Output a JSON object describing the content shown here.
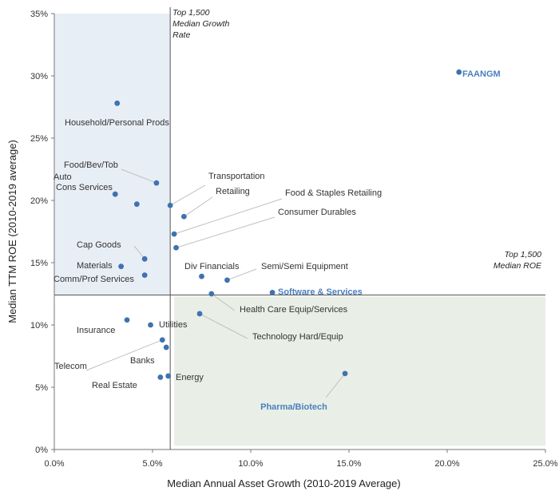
{
  "chart_data": {
    "type": "scatter",
    "xlabel": "Median Annual Asset Growth (2010-2019 Average)",
    "ylabel": "Median TTM ROE (2010-2019 average)",
    "xlim": [
      0,
      25
    ],
    "ylim": [
      0,
      35
    ],
    "x_ticks": [
      "0.0%",
      "5.0%",
      "10.0%",
      "15.0%",
      "20.0%",
      "25.0%"
    ],
    "y_ticks": [
      "0%",
      "5%",
      "10%",
      "15%",
      "20%",
      "25%",
      "30%",
      "35%"
    ],
    "grid": false,
    "reference_lines": {
      "vertical": {
        "x": 5.9,
        "label_lines": [
          "Top 1,500",
          "Median Growth",
          "Rate"
        ]
      },
      "horizontal": {
        "y": 12.4,
        "label_lines": [
          "Top 1,500",
          "Median ROE"
        ]
      }
    },
    "shaded_regions": [
      {
        "quadrant": "upper-left",
        "color": "#e8eef6",
        "x": [
          0,
          5.9
        ],
        "y": [
          12.4,
          35
        ]
      },
      {
        "quadrant": "lower-right",
        "color": "#e9efe6",
        "x": [
          6.1,
          25
        ],
        "y": [
          0.3,
          12.3
        ]
      }
    ],
    "colors": {
      "point": "#3f73b0",
      "highlight_label": "#4a7fbf",
      "leader": "#c0c0c0",
      "axis": "#777777"
    },
    "points": [
      {
        "label": "Household/Personal Prods",
        "x": 3.2,
        "y": 27.8,
        "highlight": false
      },
      {
        "label": "Food/Bev/Tob",
        "x": 5.2,
        "y": 21.4,
        "highlight": false
      },
      {
        "label": "Auto",
        "x": 4.2,
        "y": 19.7,
        "highlight": false
      },
      {
        "label": "Cons Services",
        "x": 3.1,
        "y": 20.5,
        "highlight": false
      },
      {
        "label": "Transportation",
        "x": 5.9,
        "y": 19.6,
        "highlight": false
      },
      {
        "label": "Retailing",
        "x": 6.6,
        "y": 18.7,
        "highlight": false
      },
      {
        "label": "Food & Staples Retailing",
        "x": 6.1,
        "y": 17.3,
        "highlight": false
      },
      {
        "label": "Consumer Durables",
        "x": 6.2,
        "y": 16.2,
        "highlight": false
      },
      {
        "label": "Cap Goods",
        "x": 4.6,
        "y": 15.3,
        "highlight": false
      },
      {
        "label": "Materials",
        "x": 3.4,
        "y": 14.7,
        "highlight": false
      },
      {
        "label": "Comm/Prof Services",
        "x": 4.6,
        "y": 14.0,
        "highlight": false
      },
      {
        "label": "Div Financials",
        "x": 7.5,
        "y": 13.9,
        "highlight": false
      },
      {
        "label": "Semi/Semi Equipment",
        "x": 8.8,
        "y": 13.6,
        "highlight": false
      },
      {
        "label": "Health Care Equip/Services",
        "x": 8.0,
        "y": 12.5,
        "highlight": false
      },
      {
        "label": "Software & Services",
        "x": 11.1,
        "y": 12.6,
        "highlight": true
      },
      {
        "label": "Insurance",
        "x": 3.7,
        "y": 10.4,
        "highlight": false
      },
      {
        "label": "Utilities",
        "x": 4.9,
        "y": 10.0,
        "highlight": false
      },
      {
        "label": "Technology Hard/Equip",
        "x": 7.4,
        "y": 10.9,
        "highlight": false
      },
      {
        "label": "Telecom",
        "x": 5.5,
        "y": 8.8,
        "highlight": false
      },
      {
        "label": "Banks",
        "x": 5.7,
        "y": 8.2,
        "highlight": false
      },
      {
        "label": "Real Estate",
        "x": 5.4,
        "y": 5.8,
        "highlight": false
      },
      {
        "label": "Energy",
        "x": 5.8,
        "y": 5.9,
        "highlight": false
      },
      {
        "label": "FAANGM",
        "x": 20.6,
        "y": 30.3,
        "highlight": true
      },
      {
        "label": "Pharma/Biotech",
        "x": 14.8,
        "y": 6.1,
        "highlight": true
      }
    ]
  }
}
